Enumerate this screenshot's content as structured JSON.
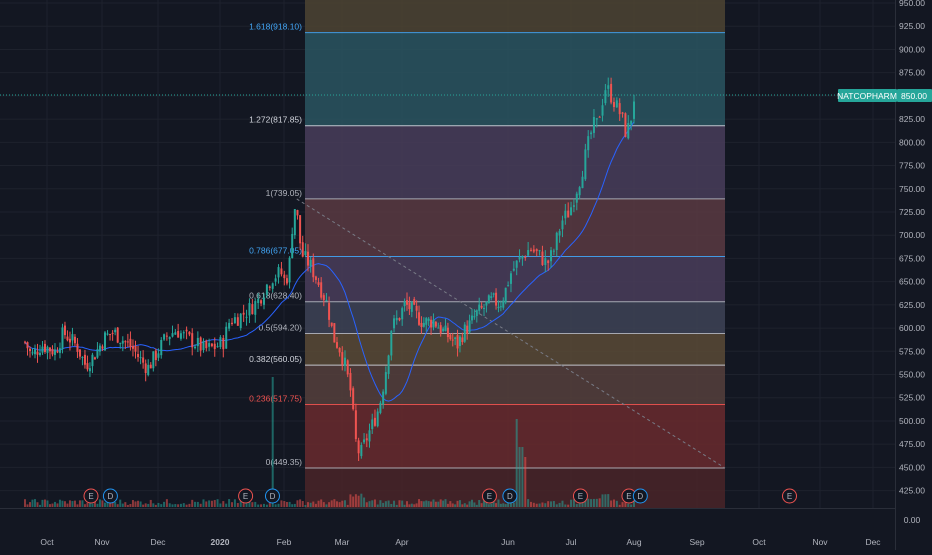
{
  "symbol": "NATCOPHARM",
  "last_price": "850.00",
  "colors": {
    "background": "#131722",
    "grid": "#1e222d",
    "text": "#b2b5be",
    "up": "#26a69a",
    "down": "#ef5350",
    "ma": "#2962ff",
    "badge_bg": "#26a69a",
    "trendline": "#787b86"
  },
  "chart_data": {
    "type": "candlestick",
    "x_axis_labels": [
      "Oct",
      "Nov",
      "Dec",
      "2020",
      "Feb",
      "Mar",
      "Apr",
      "Jun",
      "Jul",
      "Aug",
      "Sep",
      "Oct",
      "Nov",
      "Dec"
    ],
    "y_ticks": [
      950,
      925,
      900,
      875,
      850,
      825,
      800,
      775,
      750,
      725,
      700,
      675,
      650,
      625,
      600,
      575,
      550,
      525,
      500,
      475,
      450,
      425
    ],
    "y_tick_labels": [
      "950.00",
      "925.00",
      "900.00",
      "875.00",
      "850.00",
      "825.00",
      "800.00",
      "775.00",
      "750.00",
      "725.00",
      "700.00",
      "675.00",
      "650.00",
      "625.00",
      "600.00",
      "575.00",
      "550.00",
      "525.00",
      "500.00",
      "475.00",
      "450.00",
      "425.00"
    ],
    "y_zero_label": "0.00",
    "ylim": [
      412,
      955
    ],
    "fib_levels": [
      {
        "ratio": "1.618",
        "value": 918.1,
        "label": "1.618(918.10)",
        "color": "#42a5f5"
      },
      {
        "ratio": "1.272",
        "value": 817.85,
        "label": "1.272(817.85)",
        "color": "#d1d4dc"
      },
      {
        "ratio": "1",
        "value": 739.05,
        "label": "1(739.05)",
        "color": "#b2b5be"
      },
      {
        "ratio": "0.786",
        "value": 677.05,
        "label": "0.786(677.05)",
        "color": "#42a5f5"
      },
      {
        "ratio": "0.618",
        "value": 628.4,
        "label": "0.618(628.40)",
        "color": "#b2b5be"
      },
      {
        "ratio": "0.5",
        "value": 594.2,
        "label": "0.5(594.20)",
        "color": "#b2b5be"
      },
      {
        "ratio": "0.382",
        "value": 560.05,
        "label": "0.382(560.05)",
        "color": "#d1d4dc"
      },
      {
        "ratio": "0.236",
        "value": 517.75,
        "label": "0.236(517.75)",
        "color": "#ef5350"
      },
      {
        "ratio": "0",
        "value": 449.35,
        "label": "0(449.35)",
        "color": "#b2b5be"
      }
    ],
    "fib_fills": [
      "#4e4432",
      "#2a5560",
      "#493d5b",
      "#5a3a42",
      "#4a3d5b",
      "#3e4356",
      "#5a4a36",
      "#56403c",
      "#6a2a2e",
      "#4a2428"
    ],
    "events": [
      {
        "type": "E",
        "month": 10.7
      },
      {
        "type": "D",
        "month": 11.05
      },
      {
        "type": "E",
        "month": 13.3
      },
      {
        "type": "D",
        "month": 13.72
      },
      {
        "type": "E",
        "month": 17.55
      },
      {
        "type": "D",
        "month": 17.93
      },
      {
        "type": "E",
        "month": 19.05
      },
      {
        "type": "E",
        "month": 19.82
      },
      {
        "type": "D",
        "month": 20.0
      },
      {
        "type": "E",
        "month": 22.4
      }
    ],
    "price_anchors": [
      [
        9.5,
        585
      ],
      [
        9.62,
        570
      ],
      [
        9.8,
        582
      ],
      [
        10.05,
        575
      ],
      [
        10.2,
        595
      ],
      [
        10.33,
        588
      ],
      [
        10.45,
        580
      ],
      [
        10.6,
        560
      ],
      [
        10.75,
        570
      ],
      [
        10.95,
        590
      ],
      [
        11.1,
        596
      ],
      [
        11.3,
        586
      ],
      [
        11.45,
        578
      ],
      [
        11.6,
        565
      ],
      [
        11.72,
        557
      ],
      [
        11.85,
        570
      ],
      [
        12.05,
        592
      ],
      [
        12.2,
        598
      ],
      [
        12.3,
        592
      ],
      [
        12.45,
        586
      ],
      [
        12.65,
        577
      ],
      [
        12.8,
        579
      ],
      [
        12.95,
        585
      ],
      [
        13.05,
        608
      ],
      [
        13.2,
        612
      ],
      [
        13.35,
        620
      ],
      [
        13.5,
        630
      ],
      [
        13.62,
        645
      ],
      [
        13.72,
        655
      ],
      [
        13.85,
        660
      ],
      [
        13.93,
        648
      ],
      [
        14.0,
        672
      ],
      [
        14.05,
        716
      ],
      [
        14.1,
        735
      ],
      [
        14.2,
        680
      ],
      [
        14.35,
        668
      ],
      [
        14.5,
        648
      ],
      [
        14.65,
        625
      ],
      [
        14.75,
        590
      ],
      [
        14.85,
        580
      ],
      [
        14.95,
        560
      ],
      [
        15.05,
        530
      ],
      [
        15.12,
        480
      ],
      [
        15.2,
        462
      ],
      [
        15.3,
        480
      ],
      [
        15.42,
        498
      ],
      [
        15.52,
        515
      ],
      [
        15.62,
        550
      ],
      [
        15.72,
        600
      ],
      [
        15.85,
        612
      ],
      [
        15.95,
        625
      ],
      [
        16.05,
        622
      ],
      [
        16.2,
        612
      ],
      [
        16.3,
        606
      ],
      [
        16.5,
        608
      ],
      [
        16.65,
        598
      ],
      [
        16.8,
        590
      ],
      [
        16.95,
        582
      ],
      [
        17.05,
        595
      ],
      [
        17.2,
        605
      ],
      [
        17.3,
        615
      ],
      [
        17.45,
        622
      ],
      [
        17.6,
        630
      ],
      [
        17.75,
        626
      ],
      [
        17.85,
        640
      ],
      [
        17.95,
        660
      ],
      [
        18.1,
        675
      ],
      [
        18.25,
        686
      ],
      [
        18.4,
        678
      ],
      [
        18.52,
        669
      ],
      [
        18.62,
        682
      ],
      [
        18.75,
        715
      ],
      [
        18.88,
        726
      ],
      [
        18.95,
        742
      ],
      [
        19.05,
        762
      ],
      [
        19.15,
        792
      ],
      [
        19.25,
        818
      ],
      [
        19.32,
        820
      ],
      [
        19.38,
        840
      ],
      [
        19.45,
        860
      ],
      [
        19.5,
        855
      ],
      [
        19.6,
        842
      ],
      [
        19.7,
        828
      ],
      [
        19.78,
        808
      ],
      [
        19.85,
        825
      ],
      [
        19.9,
        848
      ]
    ]
  }
}
